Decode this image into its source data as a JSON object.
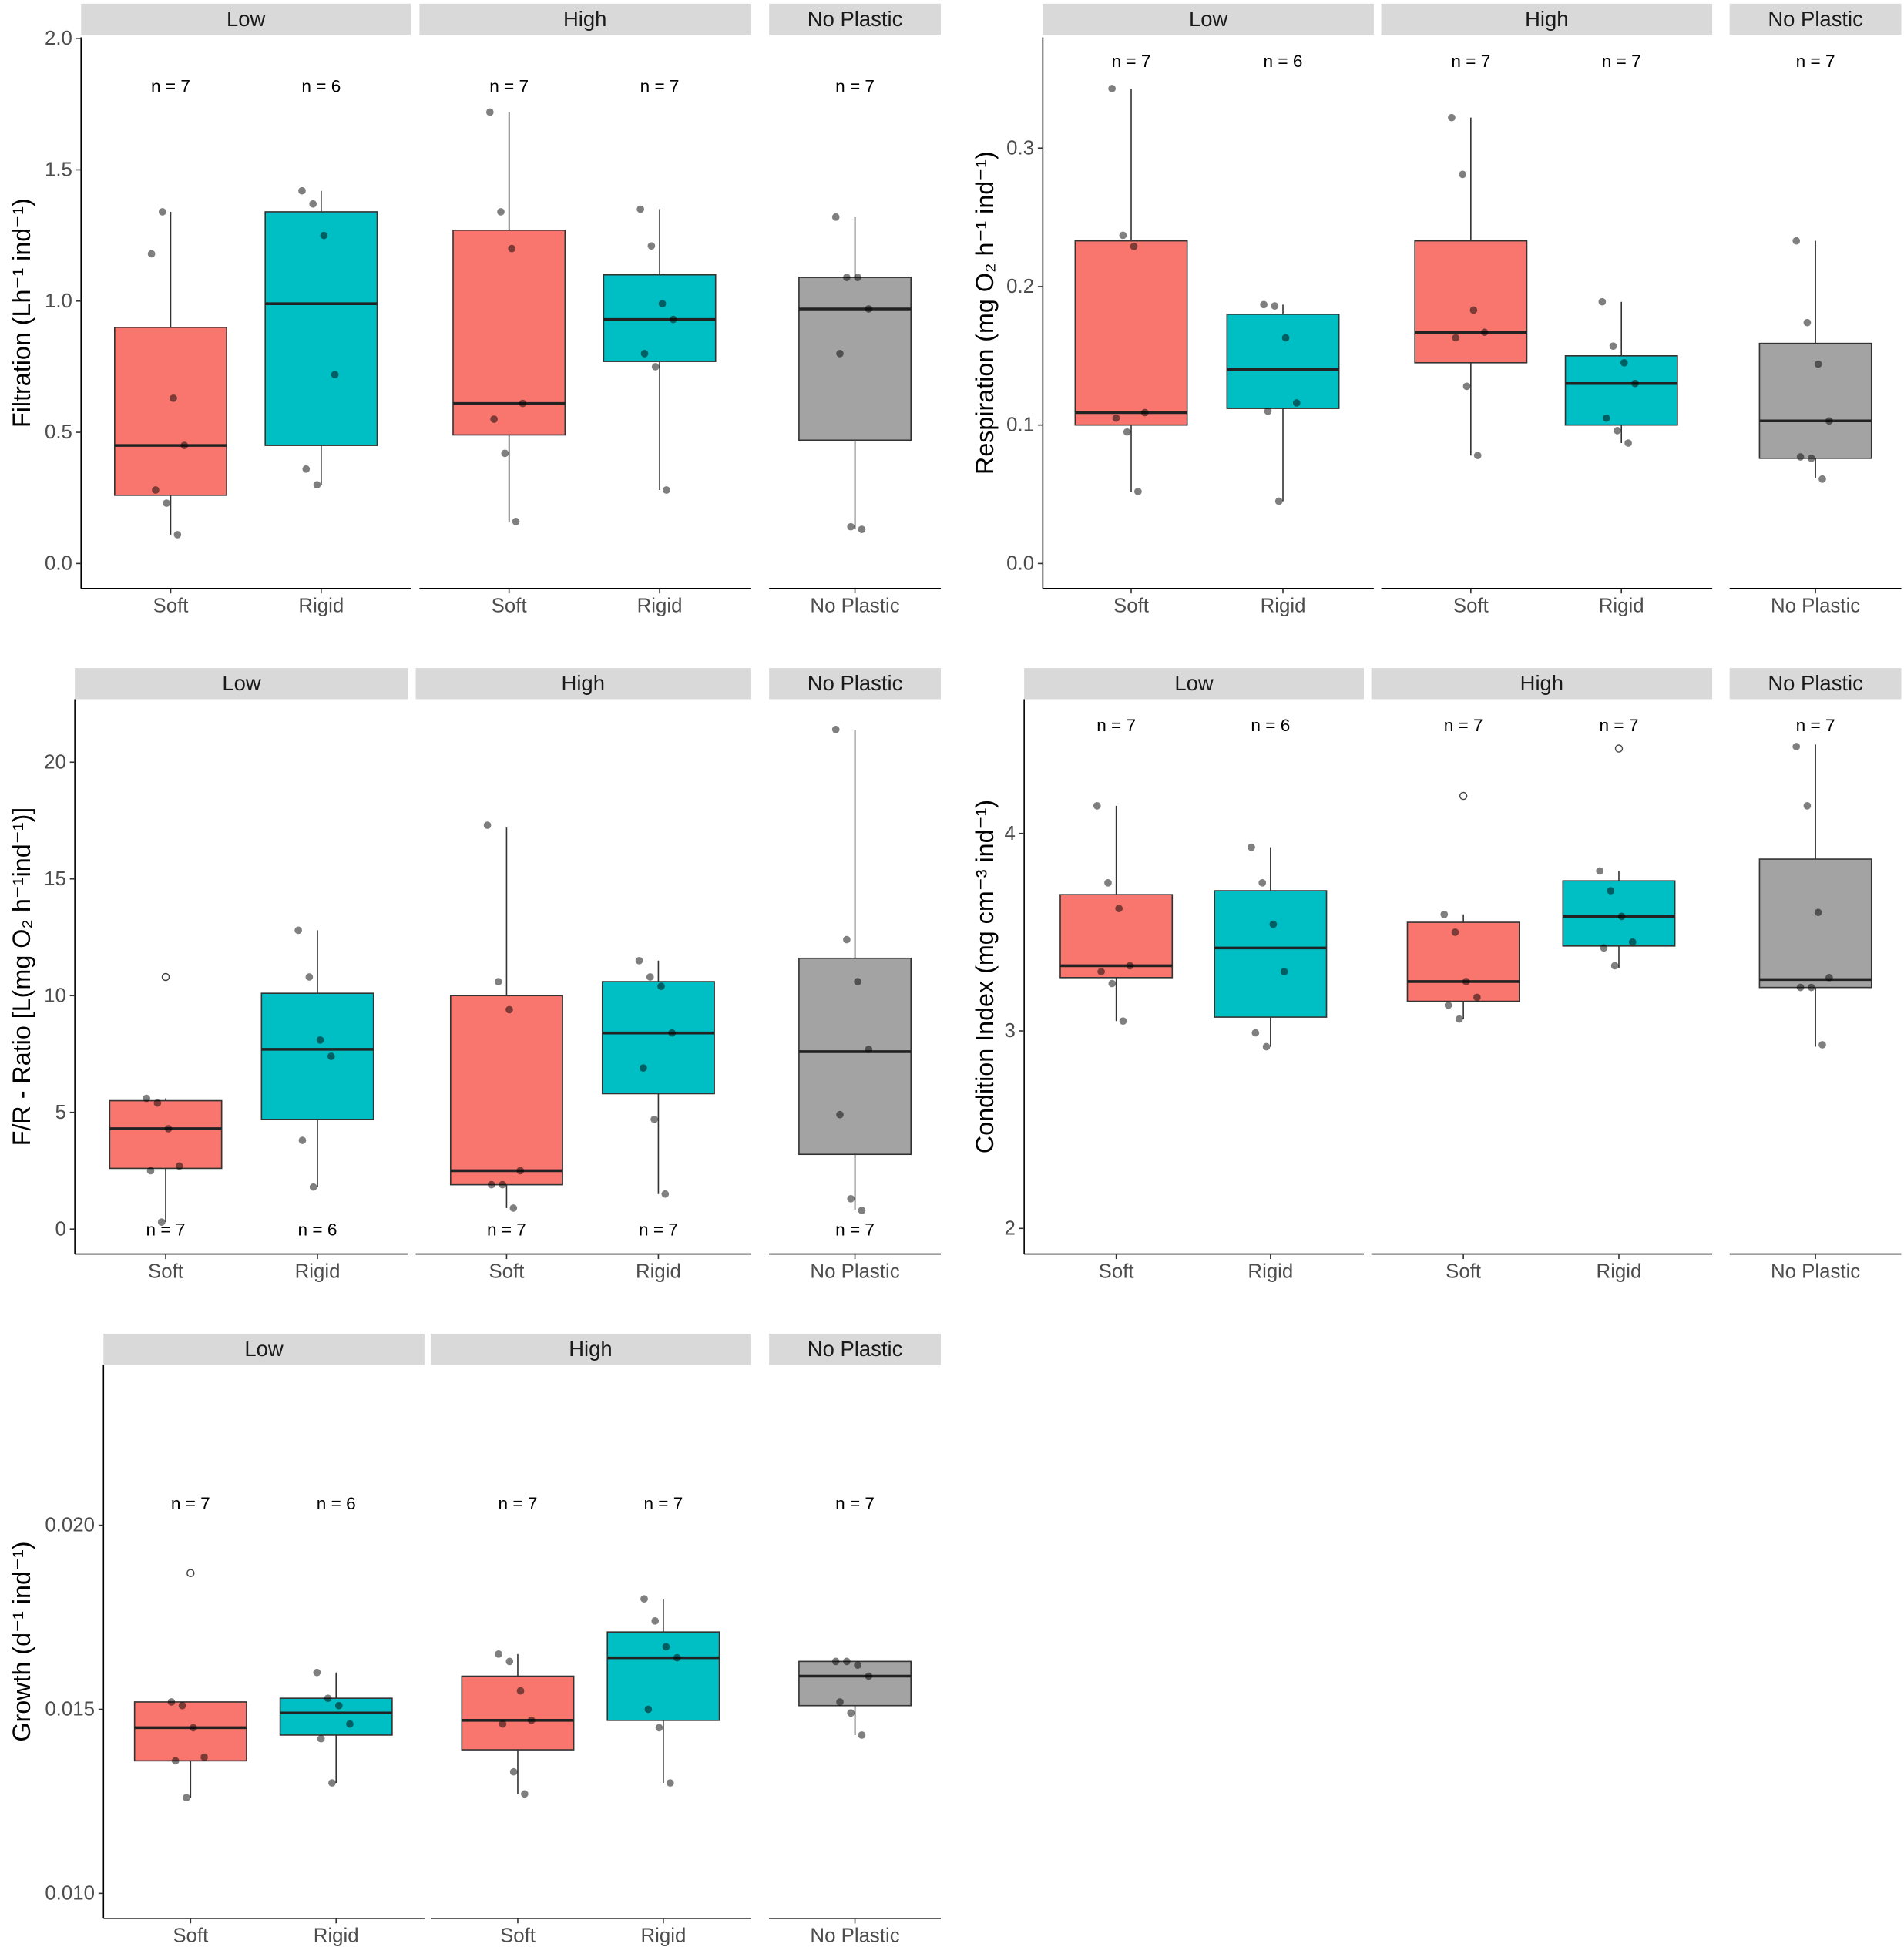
{
  "colors": {
    "Soft": "#F8766D",
    "Rigid": "#00BFC4",
    "No Plastic": "#A3A3A3",
    "strip": "#D9D9D9",
    "point": "#000000"
  },
  "chart_data": [
    {
      "type": "boxplot",
      "ylabel": "Filtration (Lh⁻¹ ind⁻¹)",
      "ylim": [
        -0.095,
        2.005
      ],
      "yticks": [
        0,
        0.5,
        1.0,
        1.5,
        2.0
      ],
      "ytick_labels": [
        "0.0",
        "0.5",
        "1.0",
        "1.5",
        "2.0"
      ],
      "n_y": 1.82,
      "facets": [
        {
          "label": "Low",
          "groups": [
            {
              "label": "Soft",
              "n": "n = 7",
              "stats": [
                0.11,
                0.26,
                0.45,
                0.9,
                1.34
              ],
              "points": [
                1.18,
                1.34,
                0.63,
                0.45,
                0.28,
                0.23,
                0.11
              ],
              "outliers": []
            },
            {
              "label": "Rigid",
              "n": "n = 6",
              "stats": [
                0.3,
                0.45,
                0.99,
                1.34,
                1.42
              ],
              "points": [
                1.42,
                1.37,
                1.25,
                0.72,
                0.36,
                0.3
              ],
              "outliers": []
            }
          ]
        },
        {
          "label": "High",
          "groups": [
            {
              "label": "Soft",
              "n": "n = 7",
              "stats": [
                0.16,
                0.49,
                0.61,
                1.27,
                1.72
              ],
              "points": [
                1.72,
                1.34,
                1.2,
                0.61,
                0.55,
                0.42,
                0.16
              ],
              "outliers": []
            },
            {
              "label": "Rigid",
              "n": "n = 7",
              "stats": [
                0.28,
                0.77,
                0.93,
                1.1,
                1.35
              ],
              "points": [
                1.35,
                1.21,
                0.99,
                0.93,
                0.8,
                0.75,
                0.28
              ],
              "outliers": []
            }
          ]
        },
        {
          "label": "No Plastic",
          "groups": [
            {
              "label": "No Plastic",
              "n": "n = 7",
              "stats": [
                0.13,
                0.47,
                0.97,
                1.09,
                1.32
              ],
              "points": [
                1.32,
                1.09,
                1.09,
                0.97,
                0.8,
                0.14,
                0.13
              ],
              "outliers": []
            }
          ]
        }
      ]
    },
    {
      "type": "boxplot",
      "ylabel": "Respiration (mg O₂ h⁻¹ ind⁻¹)",
      "ylim": [
        -0.018,
        0.38
      ],
      "yticks": [
        0,
        0.1,
        0.2,
        0.3
      ],
      "ytick_labels": [
        "0.0",
        "0.1",
        "0.2",
        "0.3"
      ],
      "n_y": 0.363,
      "facets": [
        {
          "label": "Low",
          "groups": [
            {
              "label": "Soft",
              "n": "n = 7",
              "stats": [
                0.052,
                0.1,
                0.109,
                0.233,
                0.343
              ],
              "points": [
                0.343,
                0.237,
                0.229,
                0.109,
                0.105,
                0.095,
                0.052
              ],
              "outliers": []
            },
            {
              "label": "Rigid",
              "n": "n = 6",
              "stats": [
                0.045,
                0.112,
                0.14,
                0.18,
                0.187
              ],
              "points": [
                0.187,
                0.186,
                0.163,
                0.116,
                0.11,
                0.045
              ],
              "outliers": []
            }
          ]
        },
        {
          "label": "High",
          "groups": [
            {
              "label": "Soft",
              "n": "n = 7",
              "stats": [
                0.078,
                0.145,
                0.167,
                0.233,
                0.322
              ],
              "points": [
                0.322,
                0.281,
                0.183,
                0.167,
                0.163,
                0.128,
                0.078
              ],
              "outliers": []
            },
            {
              "label": "Rigid",
              "n": "n = 7",
              "stats": [
                0.087,
                0.1,
                0.13,
                0.15,
                0.189
              ],
              "points": [
                0.189,
                0.157,
                0.145,
                0.13,
                0.105,
                0.096,
                0.087
              ],
              "outliers": []
            }
          ]
        },
        {
          "label": "No Plastic",
          "groups": [
            {
              "label": "No Plastic",
              "n": "n = 7",
              "stats": [
                0.062,
                0.076,
                0.103,
                0.159,
                0.233
              ],
              "points": [
                0.233,
                0.174,
                0.144,
                0.103,
                0.077,
                0.076,
                0.061
              ],
              "outliers": []
            }
          ]
        }
      ]
    },
    {
      "type": "boxplot",
      "ylabel": "F/R - Ratio [L(mg O₂ h⁻¹ind⁻¹)]",
      "ylim": [
        -1.07,
        22.7
      ],
      "yticks": [
        0,
        5,
        10,
        15,
        20
      ],
      "ytick_labels": [
        "0",
        "5",
        "10",
        "15",
        "20"
      ],
      "n_y": 0,
      "facets": [
        {
          "label": "Low",
          "groups": [
            {
              "label": "Soft",
              "n": "n = 7",
              "stats": [
                0.3,
                2.6,
                4.3,
                5.5,
                5.6
              ],
              "points": [
                5.6,
                5.4,
                4.3,
                2.7,
                2.5,
                0.3
              ],
              "outliers": [
                10.8
              ]
            },
            {
              "label": "Rigid",
              "n": "n = 6",
              "stats": [
                1.8,
                4.7,
                7.7,
                10.1,
                12.8
              ],
              "points": [
                12.8,
                10.8,
                8.1,
                7.4,
                3.8,
                1.8
              ],
              "outliers": []
            }
          ]
        },
        {
          "label": "High",
          "groups": [
            {
              "label": "Soft",
              "n": "n = 7",
              "stats": [
                0.9,
                1.9,
                2.5,
                10.0,
                17.2
              ],
              "points": [
                17.3,
                10.6,
                9.4,
                2.5,
                1.9,
                1.9,
                0.9
              ],
              "outliers": []
            },
            {
              "label": "Rigid",
              "n": "n = 7",
              "stats": [
                1.5,
                5.8,
                8.4,
                10.6,
                11.5
              ],
              "points": [
                11.5,
                10.8,
                10.4,
                8.4,
                6.9,
                4.7,
                1.5
              ],
              "outliers": []
            }
          ]
        },
        {
          "label": "No Plastic",
          "groups": [
            {
              "label": "No Plastic",
              "n": "n = 7",
              "stats": [
                0.8,
                3.2,
                7.6,
                11.6,
                21.4
              ],
              "points": [
                21.4,
                12.4,
                10.6,
                7.7,
                4.9,
                1.3,
                0.8
              ],
              "outliers": []
            }
          ]
        }
      ]
    },
    {
      "type": "boxplot",
      "ylabel": "Condition Index (mg cm⁻³ ind⁻¹)",
      "ylim": [
        1.87,
        4.68
      ],
      "yticks": [
        2,
        3,
        4
      ],
      "ytick_labels": [
        "2",
        "3",
        "4"
      ],
      "n_y": 4.55,
      "facets": [
        {
          "label": "Low",
          "groups": [
            {
              "label": "Soft",
              "n": "n = 7",
              "stats": [
                3.05,
                3.27,
                3.33,
                3.69,
                4.14
              ],
              "points": [
                4.14,
                3.75,
                3.62,
                3.33,
                3.3,
                3.24,
                3.05
              ],
              "outliers": []
            },
            {
              "label": "Rigid",
              "n": "n = 6",
              "stats": [
                2.92,
                3.07,
                3.42,
                3.71,
                3.93
              ],
              "points": [
                3.93,
                3.75,
                3.54,
                3.3,
                2.99,
                2.92
              ],
              "outliers": []
            }
          ]
        },
        {
          "label": "High",
          "groups": [
            {
              "label": "Soft",
              "n": "n = 7",
              "stats": [
                3.06,
                3.15,
                3.25,
                3.55,
                3.59
              ],
              "points": [
                3.59,
                3.5,
                3.25,
                3.17,
                3.13,
                3.06
              ],
              "outliers": [
                4.19
              ]
            },
            {
              "label": "Rigid",
              "n": "n = 7",
              "stats": [
                3.32,
                3.43,
                3.58,
                3.76,
                3.81
              ],
              "points": [
                3.81,
                3.71,
                3.58,
                3.45,
                3.42,
                3.33
              ],
              "outliers": [
                4.43
              ]
            }
          ]
        },
        {
          "label": "No Plastic",
          "groups": [
            {
              "label": "No Plastic",
              "n": "n = 7",
              "stats": [
                2.92,
                3.22,
                3.26,
                3.87,
                4.45
              ],
              "points": [
                4.44,
                4.14,
                3.6,
                3.27,
                3.22,
                3.22,
                2.93
              ],
              "outliers": []
            }
          ]
        }
      ]
    },
    {
      "type": "boxplot",
      "ylabel": "Growth (d⁻¹ ind⁻¹)",
      "ylim": [
        0.00932,
        0.02436
      ],
      "yticks": [
        0.01,
        0.015,
        0.02
      ],
      "ytick_labels": [
        "0.010",
        "0.015",
        "0.020"
      ],
      "n_y": 0.0206,
      "facets": [
        {
          "label": "Low",
          "groups": [
            {
              "label": "Soft",
              "n": "n = 7",
              "stats": [
                0.0126,
                0.0136,
                0.0145,
                0.0152,
                0.0152
              ],
              "points": [
                0.0152,
                0.0151,
                0.0145,
                0.0137,
                0.0136,
                0.0126
              ],
              "outliers": [
                0.0187
              ]
            },
            {
              "label": "Rigid",
              "n": "n = 6",
              "stats": [
                0.013,
                0.0143,
                0.0149,
                0.0153,
                0.016
              ],
              "points": [
                0.016,
                0.0153,
                0.0151,
                0.0146,
                0.0142,
                0.013
              ],
              "outliers": []
            }
          ]
        },
        {
          "label": "High",
          "groups": [
            {
              "label": "Soft",
              "n": "n = 7",
              "stats": [
                0.0127,
                0.0139,
                0.0147,
                0.0159,
                0.0165
              ],
              "points": [
                0.0165,
                0.0163,
                0.0155,
                0.0147,
                0.0146,
                0.0133,
                0.0127
              ],
              "outliers": []
            },
            {
              "label": "Rigid",
              "n": "n = 7",
              "stats": [
                0.013,
                0.0147,
                0.0164,
                0.0171,
                0.018
              ],
              "points": [
                0.018,
                0.0174,
                0.0167,
                0.0164,
                0.015,
                0.0145,
                0.013
              ],
              "outliers": []
            }
          ]
        },
        {
          "label": "No Plastic",
          "groups": [
            {
              "label": "No Plastic",
              "n": "n = 7",
              "stats": [
                0.0143,
                0.0151,
                0.0159,
                0.0163,
                0.0163
              ],
              "points": [
                0.0163,
                0.0163,
                0.0162,
                0.0159,
                0.0152,
                0.0149,
                0.0143
              ],
              "outliers": []
            }
          ]
        }
      ]
    }
  ]
}
